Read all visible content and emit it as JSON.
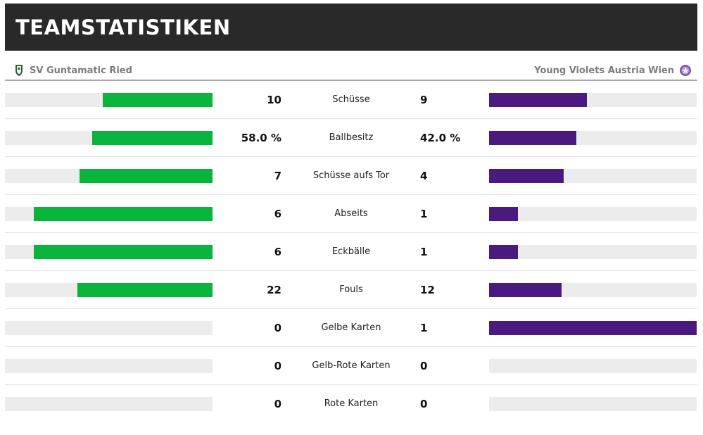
{
  "header": {
    "title": "TEAMSTATISTIKEN"
  },
  "teams": {
    "home": {
      "name": "SV Guntamatic Ried",
      "crest_icon": "sv-ried-crest-icon"
    },
    "away": {
      "name": "Young Violets Austria Wien",
      "crest_icon": "austria-wien-crest-icon"
    }
  },
  "colors": {
    "home": "#08b43c",
    "away": "#4a1a80",
    "track": "#ececec"
  },
  "stats": [
    {
      "label": "Schüsse",
      "home": "10",
      "away": "9",
      "home_share": 0.53,
      "away_share": 0.47
    },
    {
      "label": "Ballbesitz",
      "home": "58.0 %",
      "away": "42.0 %",
      "home_share": 0.58,
      "away_share": 0.42
    },
    {
      "label": "Schüsse aufs Tor",
      "home": "7",
      "away": "4",
      "home_share": 0.64,
      "away_share": 0.36
    },
    {
      "label": "Abseits",
      "home": "6",
      "away": "1",
      "home_share": 0.86,
      "away_share": 0.14
    },
    {
      "label": "Eckbälle",
      "home": "6",
      "away": "1",
      "home_share": 0.86,
      "away_share": 0.14
    },
    {
      "label": "Fouls",
      "home": "22",
      "away": "12",
      "home_share": 0.65,
      "away_share": 0.35
    },
    {
      "label": "Gelbe Karten",
      "home": "0",
      "away": "1",
      "home_share": 0.0,
      "away_share": 1.0
    },
    {
      "label": "Gelb-Rote Karten",
      "home": "0",
      "away": "0",
      "home_share": 0.0,
      "away_share": 0.0
    },
    {
      "label": "Rote Karten",
      "home": "0",
      "away": "0",
      "home_share": 0.0,
      "away_share": 0.0
    }
  ]
}
